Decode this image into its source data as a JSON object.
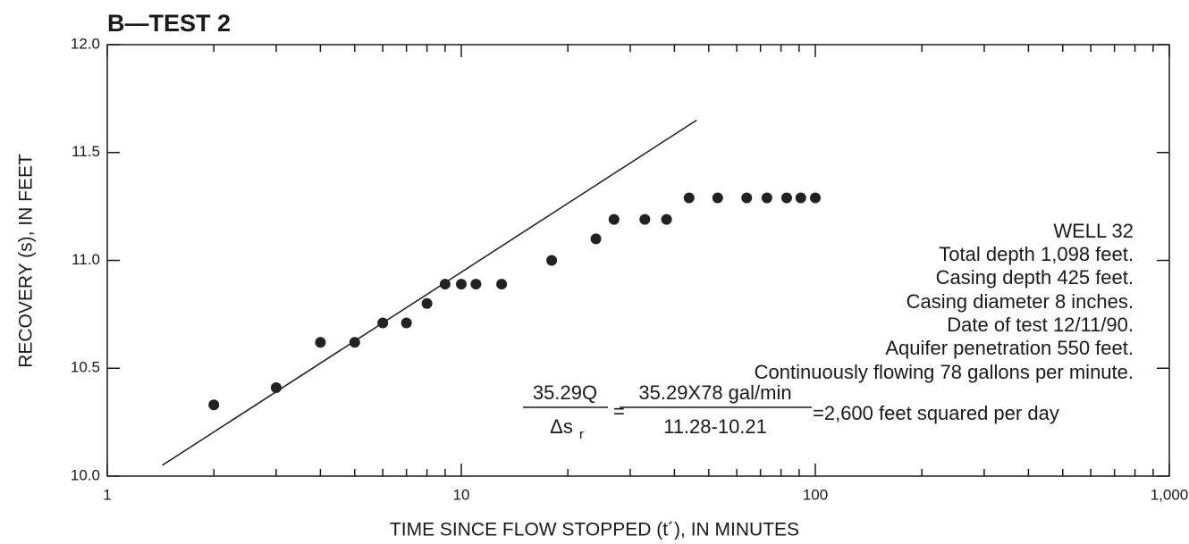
{
  "chart_data": {
    "type": "scatter",
    "title": "B—TEST 2",
    "x_label": "TIME SINCE FLOW STOPPED (t´), IN MINUTES",
    "y_label": "RECOVERY (s), IN FEET",
    "xscale": "log",
    "xlim": [
      1,
      1000
    ],
    "ylim": [
      10,
      12
    ],
    "xticks": [
      1,
      10,
      100,
      {
        "value": 1000,
        "label": "1,000"
      }
    ],
    "xminorticks": [
      2,
      3,
      4,
      5,
      6,
      7,
      8,
      9,
      20,
      30,
      40,
      50,
      60,
      70,
      80,
      90,
      200,
      300,
      400,
      500,
      600,
      700,
      800,
      900
    ],
    "yticks": [
      {
        "value": 10,
        "label": "10.0"
      },
      10.5,
      {
        "value": 11,
        "label": "11.0"
      },
      11.5,
      {
        "value": 12,
        "label": "12.0"
      }
    ],
    "color": "#222222",
    "x": [
      2,
      3,
      4,
      5,
      6,
      7,
      8,
      9,
      10,
      11,
      13,
      18,
      24,
      27,
      33,
      38,
      44,
      53,
      64,
      73,
      83,
      91,
      100
    ],
    "values": [
      10.33,
      10.41,
      10.62,
      10.62,
      10.71,
      10.71,
      10.8,
      10.89,
      10.89,
      10.89,
      10.89,
      11.0,
      11.1,
      11.19,
      11.19,
      11.19,
      11.29,
      11.29,
      11.29,
      11.29,
      11.29,
      11.29,
      11.29
    ],
    "fit_line": {
      "x": [
        1.43,
        46.2
      ],
      "values": [
        10.05,
        11.65
      ]
    },
    "annotations": {
      "lines": [
        "WELL 32",
        "Total depth 1,098 feet.",
        "Casing depth 425 feet.",
        "Casing diameter 8 inches.",
        "Date of test 12/11/90.",
        "Aquifer penetration 550 feet.",
        "Continuously flowing 78 gallons per minute."
      ],
      "formula": {
        "num1": "35.29Q",
        "den1": "Δs",
        "den1_sub": "r",
        "eq1": "=",
        "num2": "35.29X78  gal/min",
        "den2": "11.28-10.21",
        "result": "=2,600 feet squared per day"
      }
    }
  }
}
